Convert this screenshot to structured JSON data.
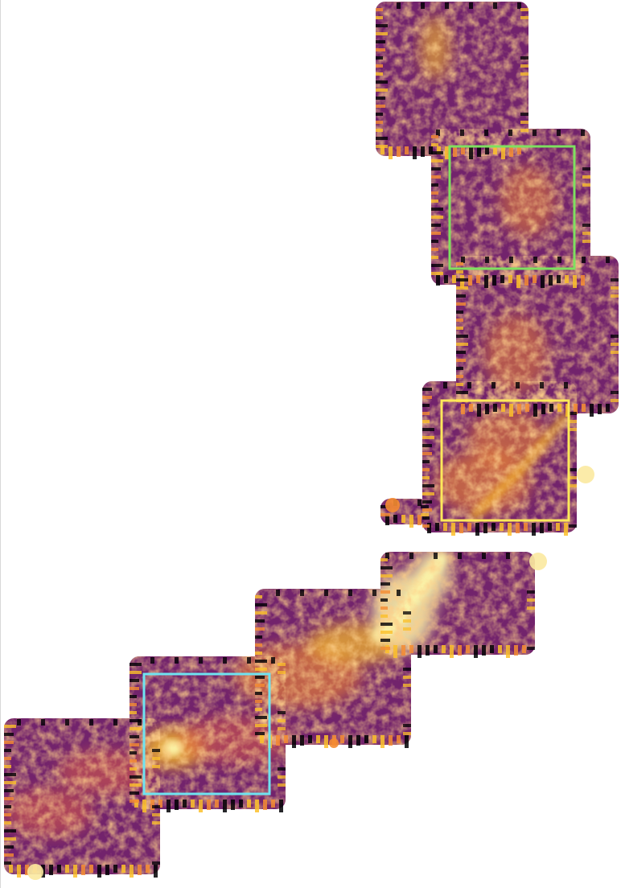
{
  "image": {
    "description_kind": "false-color astronomical intensity map mosaic",
    "colormap": [
      "#000004",
      "#2c0f4a",
      "#5a1a6b",
      "#862a6d",
      "#b5406a",
      "#dd5f4b",
      "#f58c32",
      "#fbbf2a",
      "#fcf4a8"
    ],
    "background": "#ffffff"
  },
  "regions": [
    {
      "label": "green-region",
      "color": "#7ee060"
    },
    {
      "label": "yellow-region",
      "color": "#ffe95a"
    },
    {
      "label": "cyan-region",
      "color": "#6fe3f0"
    }
  ]
}
